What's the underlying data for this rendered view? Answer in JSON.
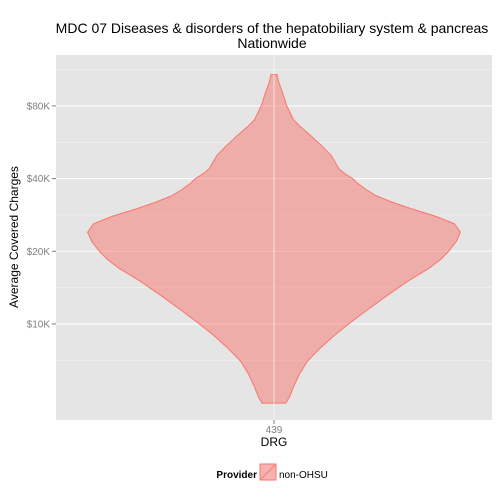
{
  "chart_data": {
    "type": "violin",
    "title": "MDC 07 Diseases & disorders of the hepatobiliary system & pancreas",
    "subtitle": "Nationwide",
    "xlabel": "DRG",
    "ylabel": "Average Covered Charges",
    "y_scale": "log",
    "ylim": [
      4000,
      130000
    ],
    "categories": [
      "439"
    ],
    "y_ticks": [
      {
        "value": 10000,
        "label": "$10K"
      },
      {
        "value": 20000,
        "label": "$20K"
      },
      {
        "value": 40000,
        "label": "$40K"
      },
      {
        "value": 80000,
        "label": "$80K"
      }
    ],
    "grid": true,
    "legend": {
      "placement": "bottom",
      "title": "Provider",
      "entries": [
        {
          "label": "non-OHSU",
          "color": "#f8766d"
        }
      ]
    },
    "series": [
      {
        "category": "439",
        "fill": "#f8766d",
        "min": 4700,
        "max": 108000,
        "density": [
          {
            "y": 4700,
            "w": 0.06
          },
          {
            "y": 5000,
            "w": 0.08
          },
          {
            "y": 5500,
            "w": 0.1
          },
          {
            "y": 6200,
            "w": 0.13
          },
          {
            "y": 7000,
            "w": 0.17
          },
          {
            "y": 8000,
            "w": 0.24
          },
          {
            "y": 9000,
            "w": 0.31
          },
          {
            "y": 10000,
            "w": 0.38
          },
          {
            "y": 11500,
            "w": 0.48
          },
          {
            "y": 13000,
            "w": 0.57
          },
          {
            "y": 15000,
            "w": 0.68
          },
          {
            "y": 17000,
            "w": 0.79
          },
          {
            "y": 18500,
            "w": 0.85
          },
          {
            "y": 20000,
            "w": 0.89
          },
          {
            "y": 22000,
            "w": 0.93
          },
          {
            "y": 24000,
            "w": 0.95
          },
          {
            "y": 26000,
            "w": 0.92
          },
          {
            "y": 28000,
            "w": 0.82
          },
          {
            "y": 30000,
            "w": 0.7
          },
          {
            "y": 32000,
            "w": 0.6
          },
          {
            "y": 34000,
            "w": 0.52
          },
          {
            "y": 36000,
            "w": 0.47
          },
          {
            "y": 38000,
            "w": 0.43
          },
          {
            "y": 40000,
            "w": 0.4
          },
          {
            "y": 42000,
            "w": 0.36
          },
          {
            "y": 44000,
            "w": 0.33
          },
          {
            "y": 47000,
            "w": 0.31
          },
          {
            "y": 50000,
            "w": 0.29
          },
          {
            "y": 55000,
            "w": 0.24
          },
          {
            "y": 60000,
            "w": 0.19
          },
          {
            "y": 65000,
            "w": 0.14
          },
          {
            "y": 70000,
            "w": 0.1
          },
          {
            "y": 80000,
            "w": 0.065
          },
          {
            "y": 90000,
            "w": 0.045
          },
          {
            "y": 100000,
            "w": 0.025
          },
          {
            "y": 108000,
            "w": 0.015
          }
        ]
      }
    ]
  }
}
